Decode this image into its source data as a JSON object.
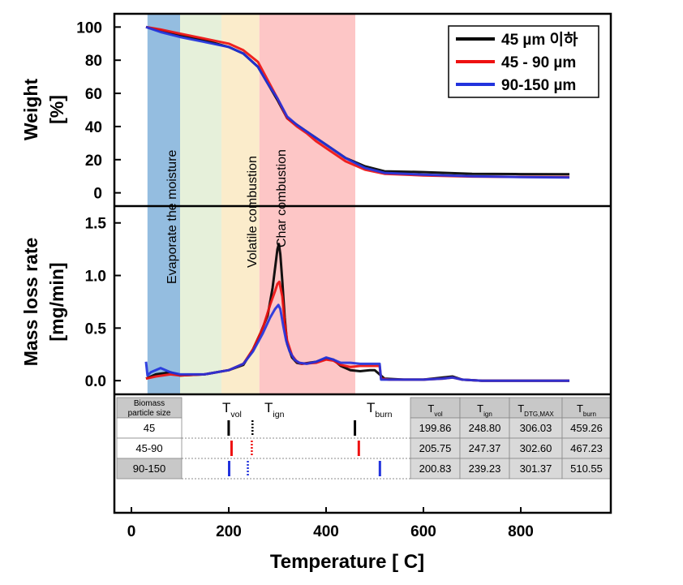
{
  "colors": {
    "black": "#000000",
    "red": "#ee1111",
    "blue": "#2233dd",
    "band_moisture": "#94bde0",
    "band_dry": "#e6f0da",
    "band_volatile": "#fbeccb",
    "band_char": "#fdc6c6"
  },
  "chart_data": [
    {
      "type": "line",
      "ylabel_line1": "Weight",
      "ylabel_line2": "[%]",
      "ylim": [
        -8,
        108
      ],
      "yticks": [
        "0",
        "20",
        "40",
        "60",
        "80",
        "100"
      ],
      "grid": false,
      "legend_position": "top-right",
      "series": [
        {
          "name": "45 µm 이하",
          "color": "black",
          "x": [
            30,
            60,
            100,
            150,
            200,
            230,
            260,
            280,
            300,
            320,
            340,
            360,
            380,
            400,
            440,
            480,
            520,
            600,
            700,
            800,
            900
          ],
          "y": [
            100,
            98,
            95,
            92,
            88,
            84,
            76,
            66,
            56,
            45,
            41,
            37,
            33,
            29,
            21,
            16,
            13,
            12.5,
            11.5,
            11.3,
            11.2
          ]
        },
        {
          "name": "45 - 90 µm",
          "color": "red",
          "x": [
            30,
            60,
            100,
            150,
            200,
            230,
            260,
            280,
            300,
            320,
            340,
            360,
            380,
            400,
            440,
            480,
            520,
            600,
            700,
            800,
            900
          ],
          "y": [
            100,
            98.5,
            96,
            93,
            90,
            86,
            79,
            68,
            57,
            45,
            40,
            36,
            31,
            27,
            19,
            14,
            11.5,
            10.5,
            9.8,
            9.6,
            9.5
          ]
        },
        {
          "name": "90-150 µm",
          "color": "blue",
          "x": [
            30,
            60,
            100,
            150,
            200,
            230,
            260,
            280,
            300,
            320,
            340,
            360,
            380,
            400,
            440,
            480,
            520,
            600,
            700,
            800,
            900
          ],
          "y": [
            100,
            97,
            94,
            91,
            88,
            84,
            76,
            66,
            57,
            46,
            41,
            37,
            33,
            29,
            21,
            15,
            12,
            11,
            10,
            9.5,
            9.3
          ]
        }
      ]
    },
    {
      "type": "line",
      "ylabel_line1": "Mass loss rate",
      "ylabel_line2": "[mg/min]",
      "ylim": [
        -0.13,
        1.66
      ],
      "yticks": [
        "0.0",
        "0.5",
        "1.0",
        "1.5"
      ],
      "grid": false,
      "series": [
        {
          "name": "45 µm 이하",
          "color": "black",
          "x": [
            30,
            50,
            80,
            100,
            150,
            200,
            230,
            250,
            265,
            280,
            290,
            296,
            300,
            303,
            306,
            310,
            315,
            320,
            330,
            340,
            350,
            380,
            400,
            415,
            430,
            450,
            470,
            490,
            500,
            520,
            560,
            600,
            640,
            660,
            680,
            720,
            800,
            900
          ],
          "y": [
            0.02,
            0.06,
            0.08,
            0.05,
            0.06,
            0.1,
            0.15,
            0.3,
            0.45,
            0.62,
            0.88,
            1.1,
            1.25,
            1.3,
            1.2,
            0.95,
            0.6,
            0.35,
            0.22,
            0.17,
            0.16,
            0.18,
            0.21,
            0.2,
            0.14,
            0.1,
            0.09,
            0.1,
            0.1,
            0.02,
            0.01,
            0.01,
            0.03,
            0.04,
            0.01,
            0.0,
            0.0,
            0.0
          ]
        },
        {
          "name": "45 - 90 µm",
          "color": "red",
          "x": [
            30,
            50,
            80,
            100,
            150,
            200,
            230,
            250,
            270,
            285,
            295,
            300,
            304,
            310,
            315,
            320,
            330,
            340,
            350,
            380,
            400,
            415,
            430,
            450,
            470,
            490,
            510,
            513,
            530,
            600,
            640,
            660,
            680,
            720,
            800,
            900
          ],
          "y": [
            0.02,
            0.04,
            0.06,
            0.05,
            0.06,
            0.1,
            0.16,
            0.3,
            0.5,
            0.72,
            0.85,
            0.92,
            0.94,
            0.8,
            0.55,
            0.38,
            0.24,
            0.18,
            0.16,
            0.17,
            0.2,
            0.19,
            0.15,
            0.13,
            0.14,
            0.14,
            0.14,
            0.02,
            0.01,
            0.01,
            0.02,
            0.03,
            0.01,
            0.0,
            0.0,
            0.0
          ]
        },
        {
          "name": "90-150 µm",
          "color": "blue",
          "x": [
            30,
            33,
            40,
            60,
            80,
            100,
            150,
            200,
            230,
            250,
            270,
            285,
            295,
            302,
            306,
            312,
            318,
            325,
            335,
            345,
            360,
            380,
            400,
            415,
            430,
            450,
            470,
            490,
            510,
            513,
            530,
            600,
            640,
            660,
            680,
            720,
            800,
            900
          ],
          "y": [
            0.18,
            0.05,
            0.08,
            0.12,
            0.08,
            0.06,
            0.06,
            0.1,
            0.16,
            0.28,
            0.45,
            0.6,
            0.68,
            0.72,
            0.68,
            0.52,
            0.38,
            0.28,
            0.2,
            0.17,
            0.16,
            0.18,
            0.22,
            0.2,
            0.17,
            0.17,
            0.16,
            0.16,
            0.16,
            0.01,
            0.01,
            0.01,
            0.02,
            0.03,
            0.01,
            0.0,
            0.0,
            0.0
          ]
        }
      ]
    }
  ],
  "x_axis": {
    "label": "Temperature [ C]",
    "xlim": [
      -35,
      985
    ],
    "ticks": [
      "0",
      "200",
      "400",
      "600",
      "800"
    ]
  },
  "regions": [
    {
      "name": "moisture",
      "from": 33,
      "to": 100,
      "color": "band_moisture",
      "label": "Evaporate the moisture"
    },
    {
      "name": "dry",
      "from": 100,
      "to": 185,
      "color": "band_dry",
      "label": ""
    },
    {
      "name": "volatile",
      "from": 185,
      "to": 263,
      "color": "band_volatile",
      "label": "Volatile combustion"
    },
    {
      "name": "char",
      "from": 263,
      "to": 460,
      "color": "band_char",
      "label": "Char combustion"
    }
  ],
  "table": {
    "header_size_line1": "Biomass",
    "header_size_line2": "particle size",
    "marker_titles": {
      "vol_main": "T",
      "vol_sub": "vol",
      "ign_main": "T",
      "ign_sub": "ign",
      "burn_main": "T",
      "burn_sub": "burn"
    },
    "columns": [
      {
        "main": "T",
        "sub": "vol"
      },
      {
        "main": "T",
        "sub": "ign"
      },
      {
        "main": "T",
        "sub": "DTG,MAX"
      },
      {
        "main": "T",
        "sub": "burn"
      }
    ],
    "rows": [
      {
        "size": "45",
        "color": "black",
        "T_vol": 199.86,
        "T_ign": 248.8,
        "T_dtg": 306.03,
        "T_burn": 459.26,
        "cells": [
          "199.86",
          "248.80",
          "306.03",
          "459.26"
        ]
      },
      {
        "size": "45-90",
        "color": "red",
        "T_vol": 205.75,
        "T_ign": 247.37,
        "T_dtg": 302.6,
        "T_burn": 467.23,
        "cells": [
          "205.75",
          "247.37",
          "302.60",
          "467.23"
        ]
      },
      {
        "size": "90-150",
        "color": "blue",
        "T_vol": 200.83,
        "T_ign": 239.23,
        "T_dtg": 301.37,
        "T_burn": 510.55,
        "cells": [
          "200.83",
          "239.23",
          "301.37",
          "510.55"
        ]
      }
    ]
  }
}
